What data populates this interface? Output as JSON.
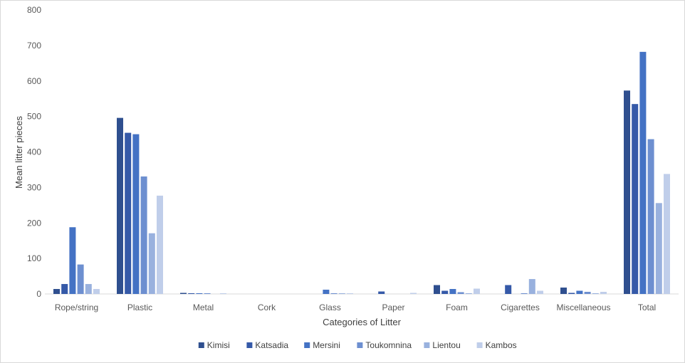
{
  "chart_data": {
    "type": "bar",
    "title": "",
    "xlabel": "Categories of Litter",
    "ylabel": "Mean litter pieces",
    "ylim": [
      0,
      800
    ],
    "yticks": [
      0,
      100,
      200,
      300,
      400,
      500,
      600,
      700,
      800
    ],
    "grid": false,
    "legend_position": "bottom",
    "categories": [
      "Rope/string",
      "Plastic",
      "Metal",
      "Cork",
      "Glass",
      "Paper",
      "Foam",
      "Cigarettes",
      "Miscellaneous",
      "Total"
    ],
    "series": [
      {
        "name": "Kimisi",
        "color": "#2F4F8F",
        "values": [
          14,
          496,
          3,
          0,
          0,
          0,
          25,
          0,
          18,
          573
        ]
      },
      {
        "name": "Katsadia",
        "color": "#3559A8",
        "values": [
          28,
          454,
          2,
          0,
          0,
          7,
          9,
          25,
          3,
          535
        ]
      },
      {
        "name": "Mersini",
        "color": "#4472C4",
        "values": [
          188,
          450,
          2,
          0,
          12,
          0,
          14,
          0,
          9,
          682
        ]
      },
      {
        "name": "Toukomnina",
        "color": "#6D8FD0",
        "values": [
          83,
          331,
          2,
          0,
          2,
          0,
          5,
          2,
          6,
          436
        ]
      },
      {
        "name": "Lientou",
        "color": "#99B1DE",
        "values": [
          28,
          171,
          0,
          0,
          2,
          0,
          2,
          42,
          2,
          256
        ]
      },
      {
        "name": "Kambos",
        "color": "#C0CEEA",
        "values": [
          14,
          277,
          2,
          0,
          2,
          3,
          15,
          9,
          6,
          338
        ]
      }
    ]
  }
}
